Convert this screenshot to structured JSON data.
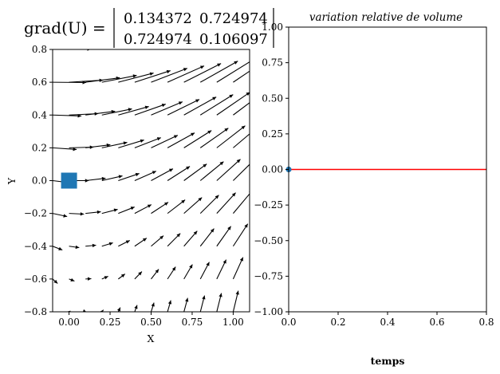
{
  "chart_data": [
    {
      "type": "quiver",
      "title_lhs": "grad(U) =",
      "matrix": [
        [
          "0.134372",
          "0.724974"
        ],
        [
          "0.724974",
          "0.106097"
        ]
      ],
      "xlabel": "X",
      "ylabel": "Y",
      "xlim": [
        -0.1,
        1.1
      ],
      "ylim": [
        -0.8,
        0.8
      ],
      "xticks": [
        0.0,
        0.25,
        0.5,
        0.75,
        1.0
      ],
      "xtick_labels": [
        "0.00",
        "0.25",
        "0.50",
        "0.75",
        "1.00"
      ],
      "yticks": [
        -0.8,
        -0.6,
        -0.4,
        -0.2,
        0.0,
        0.2,
        0.4,
        0.6,
        0.8
      ],
      "ytick_labels": [
        "−0.8",
        "−0.6",
        "−0.4",
        "−0.2",
        "0.0",
        "0.2",
        "0.4",
        "0.6",
        "0.8"
      ],
      "gradient": [
        [
          0.134372,
          0.724974
        ],
        [
          0.724974,
          0.106097
        ]
      ],
      "arrow_grid_x": [
        -0.1,
        0.0,
        0.1,
        0.2,
        0.3,
        0.4,
        0.5,
        0.6,
        0.7,
        0.8,
        0.9,
        1.0,
        1.1
      ],
      "arrow_grid_y": [
        -0.8,
        -0.6,
        -0.4,
        -0.2,
        0.0,
        0.2,
        0.4,
        0.6,
        0.8
      ],
      "marker": {
        "x": 0.0,
        "y": 0.0,
        "shape": "square",
        "color": "#1f77b4"
      }
    },
    {
      "type": "line",
      "title": "variation relative de volume",
      "xlabel": "temps",
      "xlim": [
        0.0,
        0.8
      ],
      "ylim": [
        -1.0,
        1.0
      ],
      "xticks": [
        0.0,
        0.2,
        0.4,
        0.6,
        0.8
      ],
      "xtick_labels": [
        "0.0",
        "0.2",
        "0.4",
        "0.6",
        "0.8"
      ],
      "yticks": [
        -1.0,
        -0.75,
        -0.5,
        -0.25,
        0.0,
        0.25,
        0.5,
        0.75,
        1.0
      ],
      "ytick_labels": [
        "−1.00",
        "−0.75",
        "−0.50",
        "−0.25",
        "0.00",
        "0.25",
        "0.50",
        "0.75",
        "1.00"
      ],
      "series": [
        {
          "x": [
            0.0,
            0.8
          ],
          "y": [
            0.0,
            0.0
          ],
          "color": "#ff0000"
        }
      ],
      "point": {
        "x": 0.0,
        "y": 0.0,
        "color": "#1f77b4"
      }
    }
  ]
}
